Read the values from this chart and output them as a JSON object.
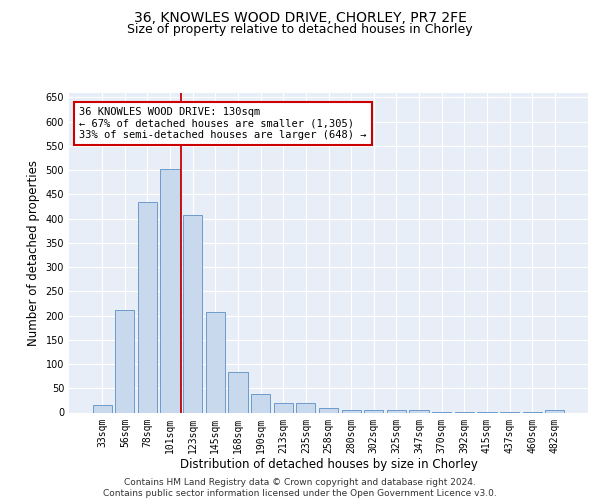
{
  "title_line1": "36, KNOWLES WOOD DRIVE, CHORLEY, PR7 2FE",
  "title_line2": "Size of property relative to detached houses in Chorley",
  "xlabel": "Distribution of detached houses by size in Chorley",
  "ylabel": "Number of detached properties",
  "categories": [
    "33sqm",
    "56sqm",
    "78sqm",
    "101sqm",
    "123sqm",
    "145sqm",
    "168sqm",
    "190sqm",
    "213sqm",
    "235sqm",
    "258sqm",
    "280sqm",
    "302sqm",
    "325sqm",
    "347sqm",
    "370sqm",
    "392sqm",
    "415sqm",
    "437sqm",
    "460sqm",
    "482sqm"
  ],
  "values": [
    15,
    212,
    435,
    502,
    408,
    207,
    84,
    38,
    19,
    19,
    10,
    5,
    5,
    5,
    5,
    2,
    2,
    2,
    2,
    2,
    5
  ],
  "bar_color": "#c9d9ed",
  "bar_edge_color": "#5b8fc4",
  "vline_color": "#cc0000",
  "vline_bar_index": 3,
  "annotation_text": "36 KNOWLES WOOD DRIVE: 130sqm\n← 67% of detached houses are smaller (1,305)\n33% of semi-detached houses are larger (648) →",
  "annotation_box_color": "white",
  "annotation_box_edge": "#cc0000",
  "ylim": [
    0,
    660
  ],
  "yticks": [
    0,
    50,
    100,
    150,
    200,
    250,
    300,
    350,
    400,
    450,
    500,
    550,
    600,
    650
  ],
  "footer_text": "Contains HM Land Registry data © Crown copyright and database right 2024.\nContains public sector information licensed under the Open Government Licence v3.0.",
  "background_color": "#e8eef7",
  "grid_color": "#ffffff",
  "title_fontsize": 10,
  "subtitle_fontsize": 9,
  "tick_fontsize": 7,
  "label_fontsize": 8.5,
  "footer_fontsize": 6.5
}
